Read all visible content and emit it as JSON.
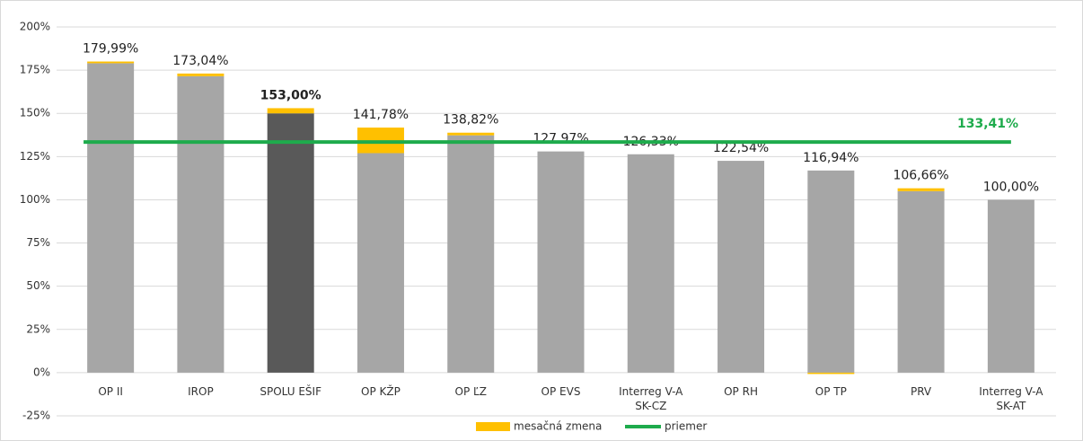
{
  "chart_data": {
    "type": "stacked_bar",
    "categories": [
      "OP II",
      "IROP",
      "SPOLU EŠIF",
      "OP KŽP",
      "OP ĽZ",
      "OP EVS",
      "Interreg V-A\nSK-CZ",
      "OP RH",
      "OP TP",
      "PRV",
      "Interreg V-A\nSK-AT"
    ],
    "series": [
      {
        "colors": [
          "#a6a6a6",
          "#a6a6a6",
          "#595959",
          "#a6a6a6",
          "#a6a6a6",
          "#a6a6a6",
          "#a6a6a6",
          "#a6a6a6",
          "#a6a6a6",
          "#a6a6a6",
          "#a6a6a6"
        ],
        "values": [
          179.0,
          171.5,
          150.0,
          127.0,
          137.3,
          127.97,
          126.33,
          122.54,
          116.94,
          105.0,
          100.0
        ]
      },
      {
        "name": "mesačná zmena",
        "color": "#ffc000",
        "values": [
          0.99,
          1.54,
          3.0,
          14.78,
          1.52,
          0,
          0,
          0,
          -0.8,
          1.66,
          0
        ]
      }
    ],
    "total_labels": {
      "values": [
        179.99,
        173.04,
        153.0,
        141.78,
        138.82,
        127.97,
        126.33,
        122.54,
        116.94,
        106.66,
        100.0
      ],
      "labels": [
        "179,99%",
        "173,04%",
        "153,00%",
        "141,78%",
        "138,82%",
        "127,97%",
        "126,33%",
        "122,54%",
        "116,94%",
        "106,66%",
        "100,00%"
      ]
    },
    "highlight_index": 2,
    "average": {
      "name": "priemer",
      "color": "#1eab4c",
      "value": 133.41,
      "label": "133,41%"
    },
    "ylim": [
      -25,
      200
    ],
    "yticks": [
      {
        "value": -25,
        "label": "-25%"
      },
      {
        "value": 0,
        "label": "0%"
      },
      {
        "value": 25,
        "label": "25%"
      },
      {
        "value": 50,
        "label": "50%"
      },
      {
        "value": 75,
        "label": "75%"
      },
      {
        "value": 100,
        "label": "100%"
      },
      {
        "value": 125,
        "label": "125%"
      },
      {
        "value": 150,
        "label": "150%"
      },
      {
        "value": 175,
        "label": "175%"
      },
      {
        "value": 200,
        "label": "200%"
      }
    ],
    "grid": true
  }
}
